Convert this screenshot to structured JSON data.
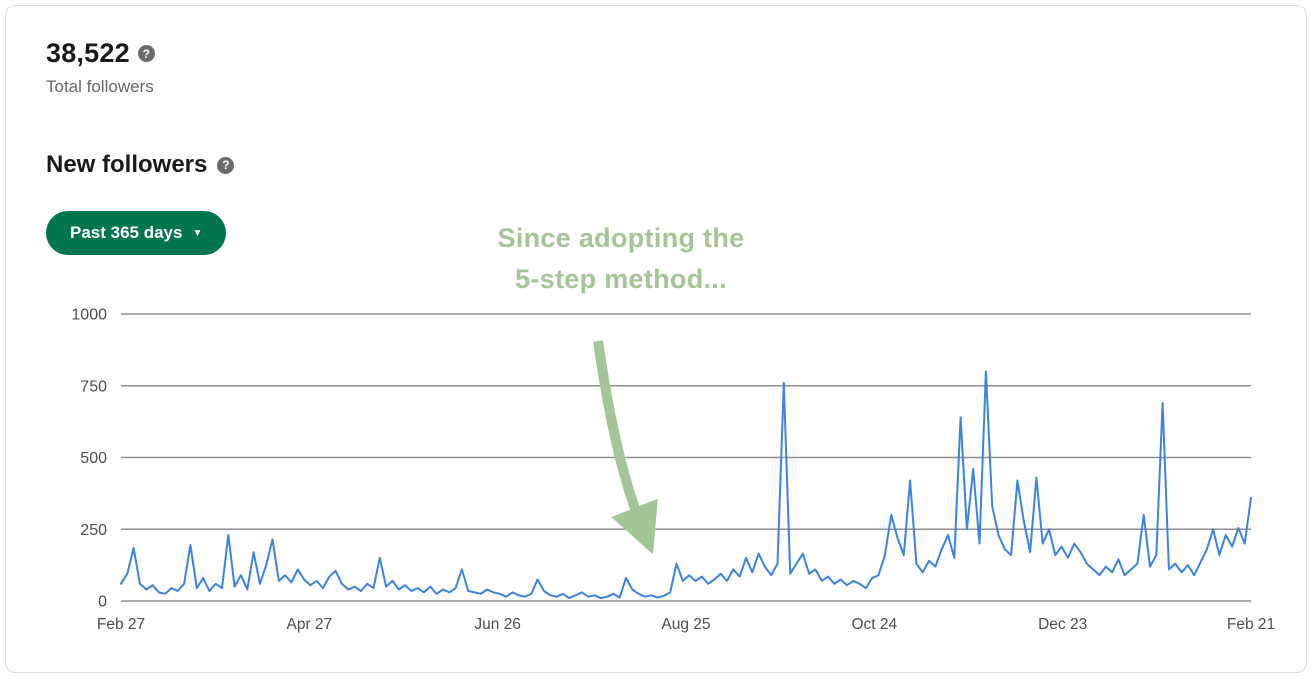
{
  "colors": {
    "accent-green": "#01754f",
    "annotation-green": "#a4c596",
    "chart-line": "#3c83e0",
    "grid-line": "#8f8f8f",
    "text-primary": "#1a1a1a",
    "text-secondary": "#666666"
  },
  "header": {
    "total_followers_value": "38,522",
    "total_followers_label": "Total followers",
    "section_title": "New followers",
    "help_icon": "?"
  },
  "filter": {
    "range_label": "Past 365 days",
    "caret": "▼"
  },
  "annotation": {
    "line1": "Since adopting the",
    "line2": "5-step method..."
  },
  "chart_data": {
    "type": "line",
    "title": "New followers",
    "xlabel": "",
    "ylabel": "",
    "x_ticks": [
      "Feb 27",
      "Apr 27",
      "Jun 26",
      "Aug 25",
      "Oct 24",
      "Dec 23",
      "Feb 21"
    ],
    "yticks": [
      0,
      250,
      500,
      750,
      1000
    ],
    "ylim": [
      0,
      1000
    ],
    "grid": true,
    "legend": false,
    "series": [
      {
        "name": "New followers",
        "values": [
          60,
          95,
          185,
          60,
          40,
          55,
          30,
          25,
          45,
          35,
          60,
          195,
          45,
          80,
          35,
          60,
          45,
          230,
          50,
          90,
          40,
          170,
          60,
          125,
          215,
          70,
          90,
          65,
          110,
          75,
          55,
          70,
          45,
          85,
          105,
          60,
          40,
          50,
          35,
          60,
          45,
          150,
          50,
          70,
          40,
          55,
          35,
          45,
          30,
          50,
          25,
          40,
          30,
          45,
          110,
          35,
          30,
          25,
          40,
          30,
          25,
          15,
          30,
          20,
          15,
          25,
          75,
          35,
          20,
          15,
          25,
          10,
          20,
          30,
          15,
          20,
          10,
          15,
          25,
          12,
          80,
          40,
          25,
          15,
          20,
          12,
          18,
          30,
          130,
          70,
          90,
          70,
          85,
          60,
          75,
          95,
          70,
          110,
          85,
          150,
          100,
          165,
          120,
          90,
          130,
          760,
          95,
          130,
          165,
          95,
          110,
          70,
          85,
          60,
          75,
          55,
          70,
          60,
          45,
          80,
          90,
          160,
          300,
          220,
          160,
          420,
          130,
          100,
          140,
          120,
          180,
          230,
          150,
          640,
          250,
          460,
          200,
          800,
          330,
          230,
          180,
          160,
          420,
          280,
          170,
          430,
          200,
          250,
          160,
          190,
          150,
          200,
          170,
          130,
          110,
          90,
          120,
          100,
          145,
          90,
          110,
          130,
          300,
          120,
          160,
          690,
          110,
          130,
          100,
          125,
          90,
          135,
          180,
          250,
          160,
          230,
          190,
          255,
          200,
          360
        ]
      }
    ]
  }
}
